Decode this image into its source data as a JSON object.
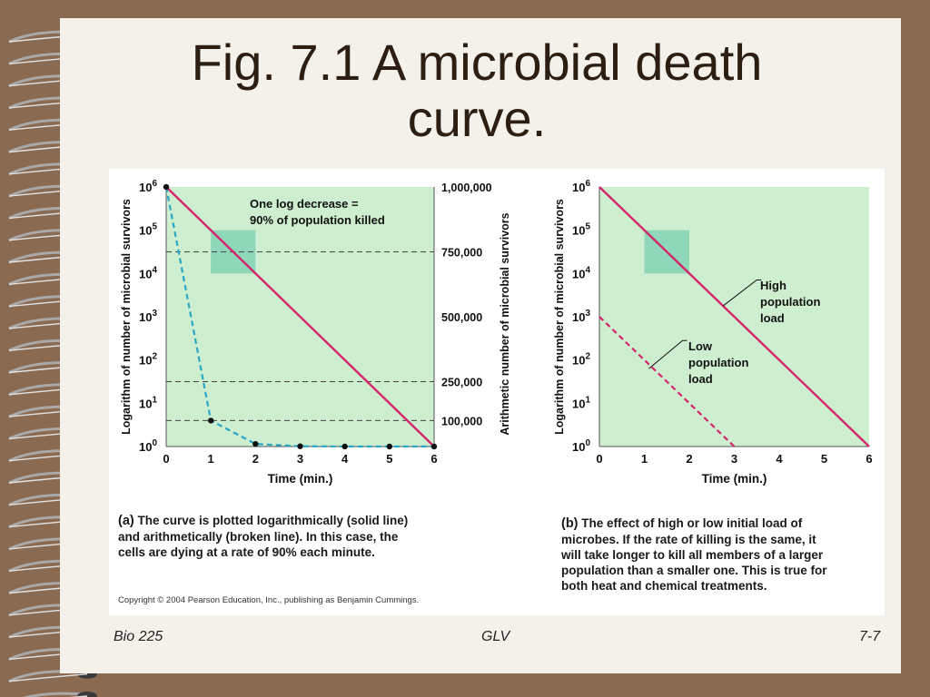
{
  "slide": {
    "title_line1": "Fig. 7.1 A microbial death",
    "title_line2": "curve.",
    "footer_left": "Bio 225",
    "footer_center": "GLV",
    "footer_right": "7-7",
    "copyright": "Copyright © 2004 Pearson Education, Inc., publishing as Benjamin Cummings."
  },
  "captions": {
    "a_letter": "(a)",
    "a_line1": "The curve is plotted logarithmically (solid line)",
    "a_line2": "and arithmetically (broken line). In this case, the",
    "a_line3": "cells are dying at a rate of 90% each minute.",
    "b_letter": "(b)",
    "b_line1": "The effect of high or low initial load of",
    "b_line2": "microbes. If the rate of killing is the same, it",
    "b_line3": "will take longer to kill all members of a larger",
    "b_line4": "population than a smaller one. This is true for",
    "b_line5": "both heat and chemical treatments."
  },
  "colors": {
    "plot_bg": "#cdeecf",
    "log_line": "#d6246e",
    "arith_line": "#2aa7c6",
    "highlight": "#8ed7b8",
    "frame": "#8b6a52"
  },
  "chart_data": [
    {
      "type": "line",
      "panel": "a",
      "xlabel": "Time (min.)",
      "ylabel_left": "Logarithm of number of microbial survivors",
      "ylabel_right": "Arithmetic number of microbial survivors",
      "x_ticks": [
        "0",
        "1",
        "2",
        "3",
        "4",
        "5",
        "6"
      ],
      "y_left_exponents": [
        "0",
        "1",
        "2",
        "3",
        "4",
        "5",
        "6"
      ],
      "y_right_ticks": [
        "100,000",
        "250,000",
        "500,000",
        "750,000",
        "1,000,000"
      ],
      "xlim": [
        0,
        6
      ],
      "ylim_log": [
        0,
        6
      ],
      "ylim_arith": [
        0,
        1000000
      ],
      "annotation_line1": "One log decrease =",
      "annotation_line2": "90% of population killed",
      "series": [
        {
          "style": "solid",
          "x": [
            0,
            6
          ],
          "y_log": [
            6,
            0
          ]
        },
        {
          "style": "dashed",
          "x": [
            0,
            1,
            2,
            3,
            4,
            5,
            6
          ],
          "y_arith": [
            1000000,
            100000,
            10000,
            1000,
            100,
            10,
            1
          ]
        }
      ]
    },
    {
      "type": "line",
      "panel": "b",
      "xlabel": "Time (min.)",
      "ylabel": "Logarithm of number of microbial survivors",
      "x_ticks": [
        "0",
        "1",
        "2",
        "3",
        "4",
        "5",
        "6"
      ],
      "y_exponents": [
        "0",
        "1",
        "2",
        "3",
        "4",
        "5",
        "6"
      ],
      "xlim": [
        0,
        6
      ],
      "ylim_log": [
        0,
        6
      ],
      "label_high": [
        "High",
        "population",
        "load"
      ],
      "label_low": [
        "Low",
        "population",
        "load"
      ],
      "series": [
        {
          "style": "solid",
          "x": [
            0,
            6
          ],
          "y_log": [
            6,
            0
          ]
        },
        {
          "style": "dashed",
          "x": [
            0,
            3
          ],
          "y_log": [
            3,
            0
          ]
        }
      ]
    }
  ]
}
